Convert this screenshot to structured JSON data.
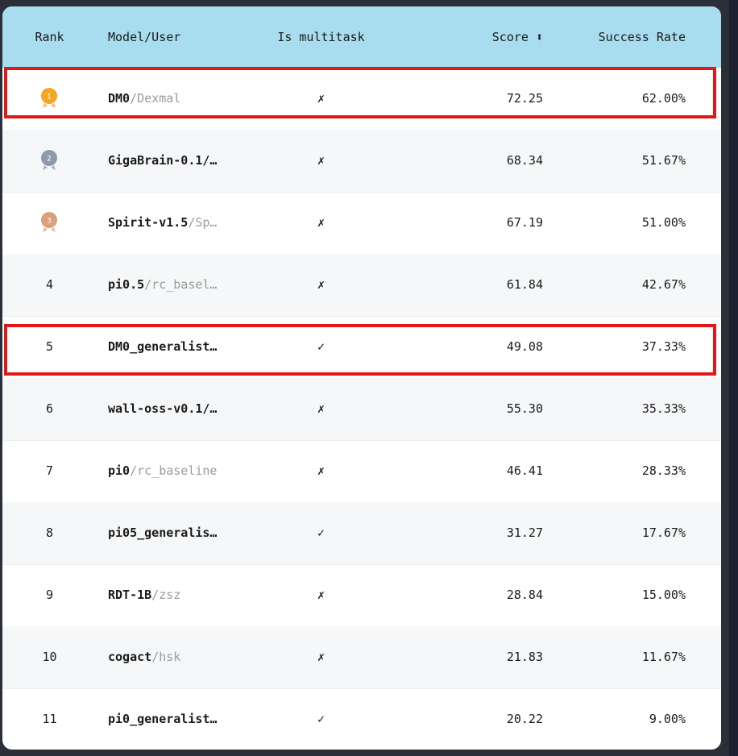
{
  "table": {
    "headers": {
      "rank": "Rank",
      "model": "Model/User",
      "multitask": "Is multitask",
      "score": "Score",
      "score_sort_icon": "sort-updown-icon",
      "rate": "Success Rate"
    },
    "rows": [
      {
        "rank": "1",
        "medal": "gold",
        "model": "DM0",
        "user": "/Dexmal",
        "multitask": "✗",
        "score": "72.25",
        "rate": "62.00%"
      },
      {
        "rank": "2",
        "medal": "silver",
        "model": "GigaBrain-0.1/…",
        "user": "",
        "multitask": "✗",
        "score": "68.34",
        "rate": "51.67%"
      },
      {
        "rank": "3",
        "medal": "bronze",
        "model": "Spirit-v1.5",
        "user": "/Sp…",
        "multitask": "✗",
        "score": "67.19",
        "rate": "51.00%"
      },
      {
        "rank": "4",
        "model": "pi0.5",
        "user": "/rc_basel…",
        "multitask": "✗",
        "score": "61.84",
        "rate": "42.67%"
      },
      {
        "rank": "5",
        "model": "DM0_generalist…",
        "user": "",
        "multitask": "✓",
        "score": "49.08",
        "rate": "37.33%"
      },
      {
        "rank": "6",
        "model": "wall-oss-v0.1/…",
        "user": "",
        "multitask": "✗",
        "score": "55.30",
        "rate": "35.33%"
      },
      {
        "rank": "7",
        "model": "pi0",
        "user": "/rc_baseline",
        "multitask": "✗",
        "score": "46.41",
        "rate": "28.33%"
      },
      {
        "rank": "8",
        "model": "pi05_generalis…",
        "user": "",
        "multitask": "✓",
        "score": "31.27",
        "rate": "17.67%"
      },
      {
        "rank": "9",
        "model": "RDT-1B",
        "user": "/zsz",
        "multitask": "✗",
        "score": "28.84",
        "rate": "15.00%"
      },
      {
        "rank": "10",
        "model": "cogact",
        "user": "/hsk",
        "multitask": "✗",
        "score": "21.83",
        "rate": "11.67%"
      },
      {
        "rank": "11",
        "model": "pi0_generalist…",
        "user": "",
        "multitask": "✓",
        "score": "20.22",
        "rate": "9.00%"
      }
    ]
  },
  "medal_colors": {
    "gold": "#f5a623",
    "silver": "#8e9aab",
    "bronze": "#d9a07a"
  },
  "highlight_color": "#e01818",
  "header_color": "#a8dcef"
}
